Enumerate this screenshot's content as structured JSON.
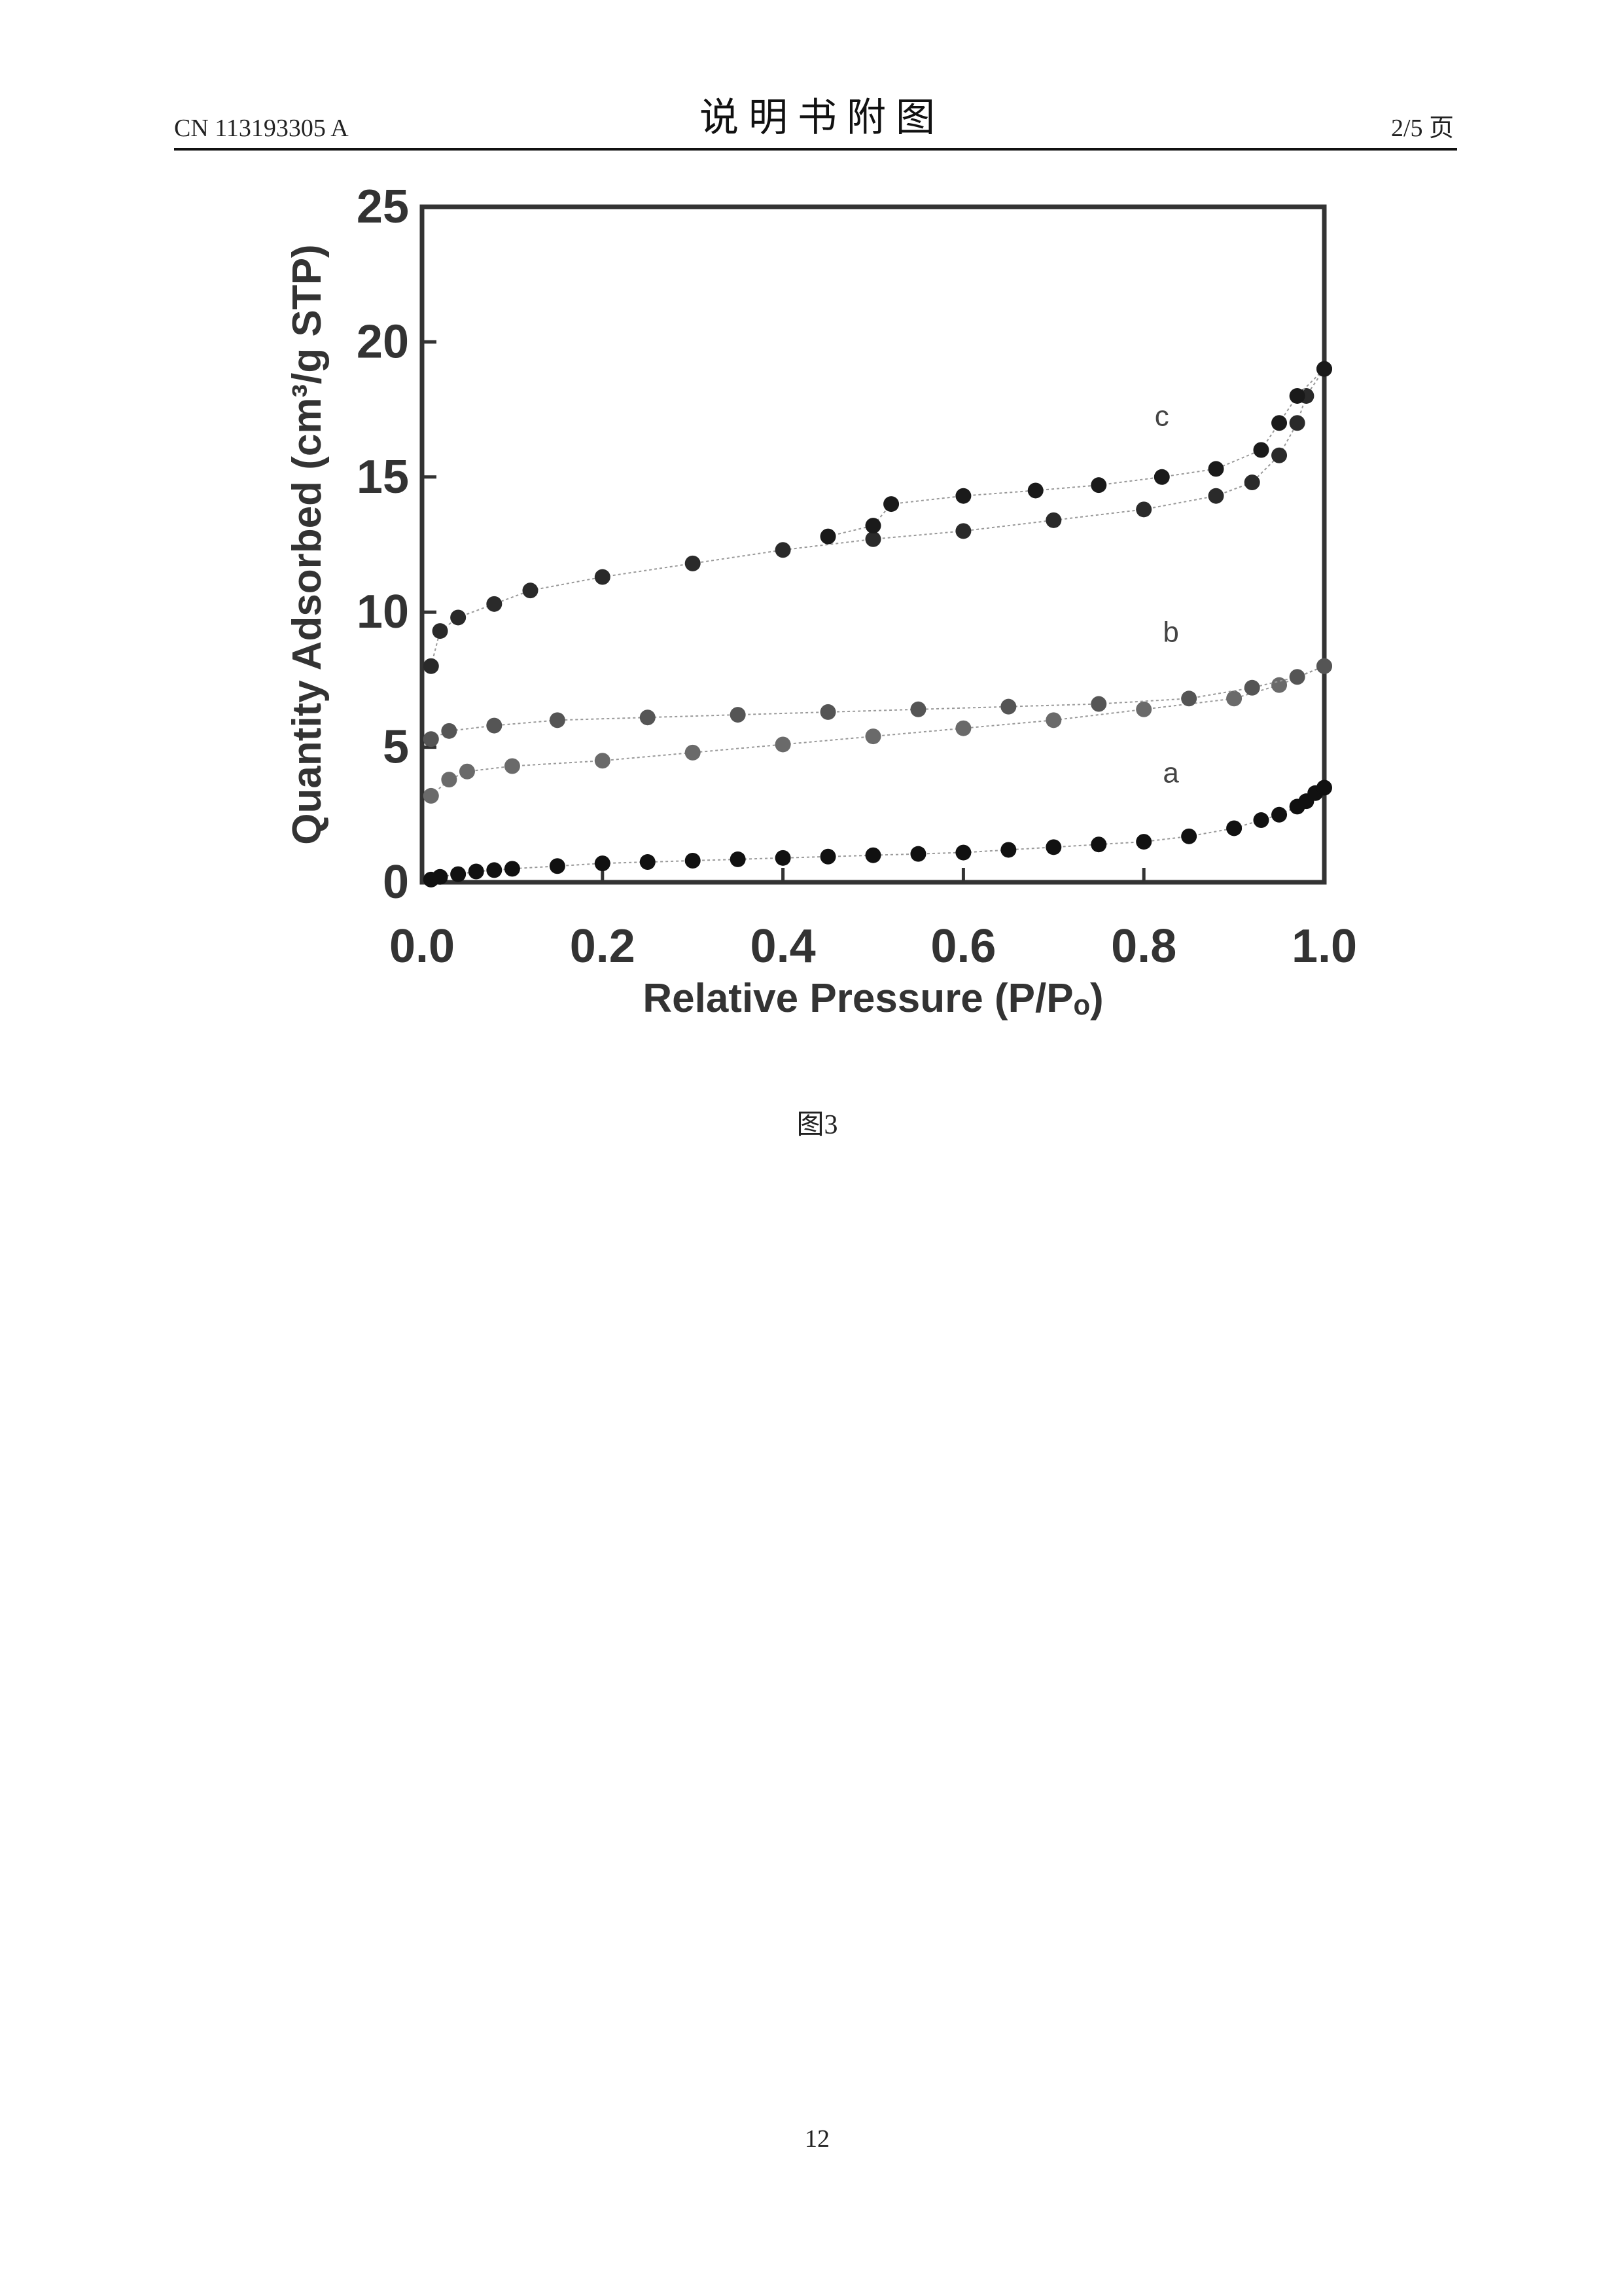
{
  "header": {
    "left": "CN 113193305 A",
    "title": "说 明 书 附 图",
    "right": "2/5 页"
  },
  "chart_data": {
    "type": "scatter",
    "xlabel": "Relative Pressure (P/Pₒ)",
    "ylabel": "Quantity Adsorbed (cm³/g STP)",
    "xlim": [
      0,
      1
    ],
    "ylim": [
      0,
      25
    ],
    "xticks": [
      {
        "value": 0,
        "label": "0.0"
      },
      0.2,
      0.4,
      0.6,
      0.8,
      {
        "value": 1,
        "label": "1.0"
      }
    ],
    "yticks": [
      0,
      5,
      10,
      15,
      20,
      25
    ],
    "series": [
      {
        "color": "#111111",
        "x": [
          0.01,
          0.02,
          0.04,
          0.06,
          0.08,
          0.1,
          0.15,
          0.2,
          0.25,
          0.3,
          0.35,
          0.4,
          0.45,
          0.5,
          0.55,
          0.6,
          0.65,
          0.7,
          0.75,
          0.8,
          0.85,
          0.9,
          0.93,
          0.95,
          0.97,
          0.98,
          0.99,
          1.0
        ],
        "values": [
          0.1,
          0.2,
          0.3,
          0.4,
          0.45,
          0.5,
          0.6,
          0.7,
          0.75,
          0.8,
          0.85,
          0.9,
          0.95,
          1.0,
          1.05,
          1.1,
          1.2,
          1.3,
          1.4,
          1.5,
          1.7,
          2.0,
          2.3,
          2.5,
          2.8,
          3.0,
          3.3,
          3.5
        ]
      },
      {
        "color": "#6a6a6a",
        "x": [
          0.01,
          0.03,
          0.05,
          0.1,
          0.2,
          0.3,
          0.4,
          0.5,
          0.6,
          0.7,
          0.8,
          0.9,
          0.95,
          1.0
        ],
        "values": [
          3.2,
          3.8,
          4.1,
          4.3,
          4.5,
          4.8,
          5.1,
          5.4,
          5.7,
          6.0,
          6.4,
          6.8,
          7.3,
          8.0
        ]
      },
      {
        "color": "#555555",
        "x": [
          0.01,
          0.03,
          0.08,
          0.15,
          0.25,
          0.35,
          0.45,
          0.55,
          0.65,
          0.75,
          0.85,
          0.92,
          0.97,
          1.0
        ],
        "values": [
          5.3,
          5.6,
          5.8,
          6.0,
          6.1,
          6.2,
          6.3,
          6.4,
          6.5,
          6.6,
          6.8,
          7.2,
          7.6,
          8.0
        ]
      },
      {
        "color": "#2a2a2a",
        "x": [
          0.01,
          0.02,
          0.04,
          0.08,
          0.12,
          0.2,
          0.3,
          0.4,
          0.5,
          0.6,
          0.7,
          0.8,
          0.88,
          0.92,
          0.95,
          0.97,
          0.98,
          1.0
        ],
        "values": [
          8.0,
          9.3,
          9.8,
          10.3,
          10.8,
          11.3,
          11.8,
          12.3,
          12.7,
          13.0,
          13.4,
          13.8,
          14.3,
          14.8,
          15.8,
          17.0,
          18.0,
          19.0
        ]
      },
      {
        "color": "#1a1a1a",
        "x": [
          0.45,
          0.5,
          0.52,
          0.6,
          0.68,
          0.75,
          0.82,
          0.88,
          0.93,
          0.95,
          0.97,
          1.0
        ],
        "values": [
          12.8,
          13.2,
          14.0,
          14.3,
          14.5,
          14.7,
          15.0,
          15.3,
          16.0,
          17.0,
          18.0,
          19.0
        ]
      }
    ],
    "annotations": [
      {
        "text": "c",
        "x": 0.82,
        "y": 16.9
      },
      {
        "text": "b",
        "x": 0.83,
        "y": 8.9
      },
      {
        "text": "a",
        "x": 0.83,
        "y": 3.7
      }
    ]
  },
  "caption": "图3",
  "page_number": "12"
}
